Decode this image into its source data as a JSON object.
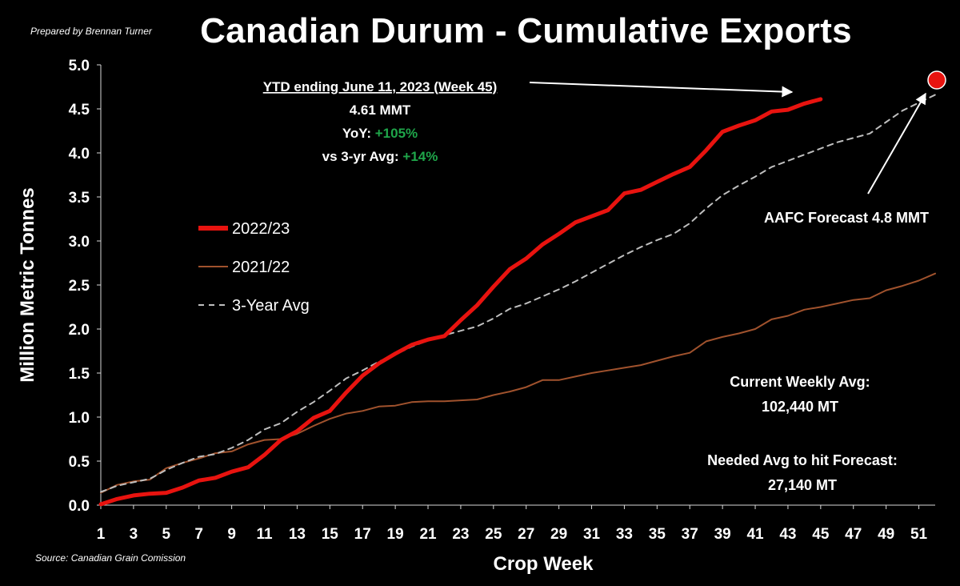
{
  "header": {
    "title": "Canadian Durum - Cumulative Exports",
    "prepared_by": "Prepared by Brennan Turner",
    "source": "Source: Canadian Grain Comission"
  },
  "annotations": {
    "ytd_line1": "YTD ending June 11, 2023 (Week 45)",
    "ytd_line2": "4.61 MMT",
    "yoy_label": "YoY: ",
    "yoy_value": "+105%",
    "avg_label": "vs 3-yr Avg: ",
    "avg_value": "+14%",
    "forecast": "AAFC Forecast 4.8 MMT",
    "weekly_avg_label": "Current Weekly Avg:",
    "weekly_avg_value": "102,440 MT",
    "needed_label": "Needed Avg to hit Forecast:",
    "needed_value": "27,140 MT"
  },
  "colors": {
    "series_2022_23": "#e8130f",
    "series_2021_22": "#a0522d",
    "series_3yr": "#bfbfbf",
    "positive": "#1fa64a",
    "forecast_marker": "#e8130f"
  },
  "chart_data": {
    "type": "line",
    "title": "Canadian Durum - Cumulative Exports",
    "xlabel": "Crop Week",
    "ylabel": "Million Metric Tonnes",
    "xlim": [
      1,
      52
    ],
    "ylim": [
      0,
      5
    ],
    "x_ticks": [
      1,
      3,
      5,
      7,
      9,
      11,
      13,
      15,
      17,
      19,
      21,
      23,
      25,
      27,
      29,
      31,
      33,
      35,
      37,
      39,
      41,
      43,
      45,
      47,
      49,
      51
    ],
    "y_ticks": [
      "0.0",
      "0.5",
      "1.0",
      "1.5",
      "2.0",
      "2.5",
      "3.0",
      "3.5",
      "4.0",
      "4.5",
      "5.0"
    ],
    "legend_position": "left-middle",
    "series": [
      {
        "name": "2022/23",
        "x": [
          1,
          2,
          3,
          4,
          5,
          6,
          7,
          8,
          9,
          10,
          11,
          12,
          13,
          14,
          15,
          16,
          17,
          18,
          19,
          20,
          21,
          22,
          23,
          24,
          25,
          26,
          27,
          28,
          29,
          30,
          31,
          32,
          33,
          34,
          35,
          36,
          37,
          38,
          39,
          40,
          41,
          42,
          43,
          44,
          45
        ],
        "values": [
          0.01,
          0.07,
          0.11,
          0.13,
          0.14,
          0.2,
          0.28,
          0.31,
          0.38,
          0.43,
          0.57,
          0.74,
          0.84,
          0.99,
          1.07,
          1.28,
          1.47,
          1.61,
          1.72,
          1.82,
          1.88,
          1.92,
          2.1,
          2.27,
          2.48,
          2.68,
          2.8,
          2.96,
          3.08,
          3.21,
          3.28,
          3.35,
          3.54,
          3.58,
          3.67,
          3.76,
          3.84,
          4.03,
          4.24,
          4.31,
          4.37,
          4.47,
          4.49,
          4.56,
          4.61
        ]
      },
      {
        "name": "2021/22",
        "x": [
          1,
          2,
          3,
          4,
          5,
          6,
          7,
          8,
          9,
          10,
          11,
          12,
          13,
          14,
          15,
          16,
          17,
          18,
          19,
          20,
          21,
          22,
          23,
          24,
          25,
          26,
          27,
          28,
          29,
          30,
          31,
          32,
          33,
          34,
          35,
          36,
          37,
          38,
          39,
          40,
          41,
          42,
          43,
          44,
          45,
          46,
          47,
          48,
          49,
          50,
          51,
          52
        ],
        "values": [
          0.14,
          0.23,
          0.27,
          0.29,
          0.42,
          0.48,
          0.53,
          0.59,
          0.61,
          0.69,
          0.74,
          0.75,
          0.81,
          0.9,
          0.98,
          1.04,
          1.07,
          1.12,
          1.13,
          1.17,
          1.18,
          1.18,
          1.19,
          1.2,
          1.25,
          1.29,
          1.34,
          1.42,
          1.42,
          1.46,
          1.5,
          1.53,
          1.56,
          1.59,
          1.64,
          1.69,
          1.73,
          1.86,
          1.91,
          1.95,
          2.0,
          2.11,
          2.15,
          2.22,
          2.25,
          2.29,
          2.33,
          2.35,
          2.44,
          2.49,
          2.55,
          2.63
        ]
      },
      {
        "name": "3-Year Avg",
        "x": [
          1,
          2,
          3,
          4,
          5,
          6,
          7,
          8,
          9,
          10,
          11,
          12,
          13,
          14,
          15,
          16,
          17,
          18,
          19,
          20,
          21,
          22,
          23,
          24,
          25,
          26,
          27,
          28,
          29,
          30,
          31,
          32,
          33,
          34,
          35,
          36,
          37,
          38,
          39,
          40,
          41,
          42,
          43,
          44,
          45,
          46,
          47,
          48,
          49,
          50,
          51,
          52
        ],
        "values": [
          0.15,
          0.22,
          0.26,
          0.3,
          0.4,
          0.48,
          0.55,
          0.58,
          0.65,
          0.74,
          0.86,
          0.93,
          1.06,
          1.17,
          1.3,
          1.44,
          1.53,
          1.63,
          1.71,
          1.8,
          1.87,
          1.93,
          1.98,
          2.03,
          2.12,
          2.23,
          2.29,
          2.37,
          2.45,
          2.54,
          2.64,
          2.74,
          2.84,
          2.93,
          3.01,
          3.08,
          3.2,
          3.37,
          3.52,
          3.63,
          3.73,
          3.84,
          3.91,
          3.98,
          4.05,
          4.12,
          4.17,
          4.22,
          4.35,
          4.48,
          4.57,
          4.66
        ]
      }
    ],
    "markers": [
      {
        "name": "AAFC Forecast",
        "x": 52,
        "y": 4.8
      }
    ]
  }
}
